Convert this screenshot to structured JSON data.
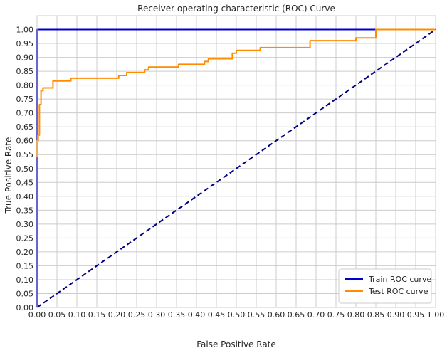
{
  "chart_data": {
    "type": "line",
    "title": "Receiver operating characteristic (ROC) Curve",
    "xlabel": "False Positive Rate",
    "ylabel": "True Positive Rate",
    "xlim": [
      0,
      1
    ],
    "ylim": [
      0,
      1.05
    ],
    "xticks": [
      0.0,
      0.05,
      0.1,
      0.15,
      0.2,
      0.25,
      0.3,
      0.35,
      0.4,
      0.45,
      0.5,
      0.55,
      0.6,
      0.65,
      0.7,
      0.75,
      0.8,
      0.85,
      0.9,
      0.95,
      1.0
    ],
    "yticks": [
      0.0,
      0.05,
      0.1,
      0.15,
      0.2,
      0.25,
      0.3,
      0.35,
      0.4,
      0.45,
      0.5,
      0.55,
      0.6,
      0.65,
      0.7,
      0.75,
      0.8,
      0.85,
      0.9,
      0.95,
      1.0
    ],
    "grid": true,
    "legend_position": "lower-right",
    "series": [
      {
        "name": "Train ROC curve",
        "color": "#0000cc",
        "dash": "solid",
        "x": [
          0.0,
          0.0,
          0.85,
          1.0
        ],
        "y": [
          0.0,
          1.0,
          1.0,
          1.0
        ]
      },
      {
        "name": "Test ROC curve",
        "color": "#ff8c00",
        "dash": "solid",
        "x": [
          0.0,
          0.0,
          0.003,
          0.003,
          0.006,
          0.006,
          0.01,
          0.01,
          0.015,
          0.015,
          0.025,
          0.025,
          0.04,
          0.04,
          0.085,
          0.085,
          0.205,
          0.205,
          0.225,
          0.225,
          0.27,
          0.27,
          0.28,
          0.28,
          0.355,
          0.355,
          0.42,
          0.42,
          0.43,
          0.43,
          0.49,
          0.49,
          0.5,
          0.5,
          0.56,
          0.56,
          0.685,
          0.685,
          0.8,
          0.8,
          0.85,
          0.85,
          1.0
        ],
        "y": [
          0.54,
          0.6,
          0.6,
          0.62,
          0.62,
          0.73,
          0.73,
          0.78,
          0.78,
          0.79,
          0.79,
          0.79,
          0.79,
          0.815,
          0.815,
          0.825,
          0.825,
          0.835,
          0.835,
          0.845,
          0.845,
          0.855,
          0.855,
          0.865,
          0.865,
          0.875,
          0.875,
          0.885,
          0.885,
          0.895,
          0.895,
          0.915,
          0.915,
          0.925,
          0.925,
          0.935,
          0.935,
          0.96,
          0.96,
          0.97,
          0.97,
          1.0,
          1.0
        ]
      },
      {
        "name": "",
        "color": "#000080",
        "dash": "dashed",
        "x": [
          0.0,
          1.0
        ],
        "y": [
          0.0,
          1.0
        ]
      }
    ]
  }
}
